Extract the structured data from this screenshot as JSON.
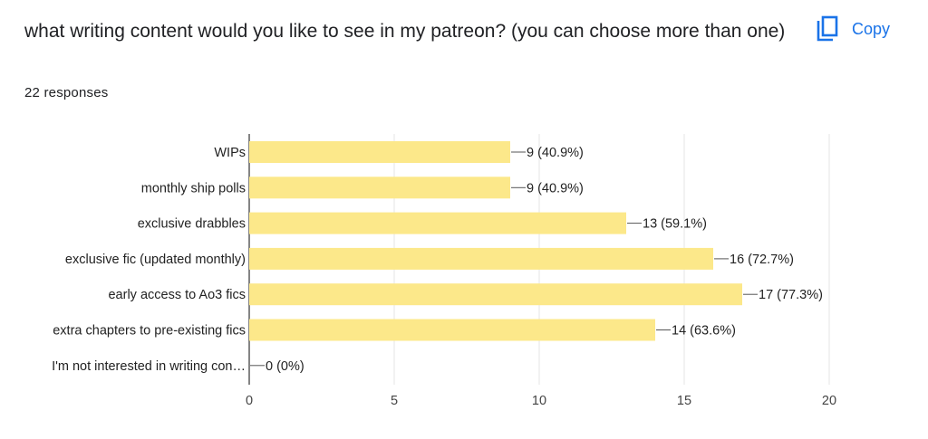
{
  "question": {
    "title": "what writing content would you like to see in my patreon? (you can choose more than one)",
    "responses": "22 responses"
  },
  "copy_button": {
    "label": "Copy",
    "icon": "copy-icon"
  },
  "colors": {
    "bar": "#fce88a",
    "accent": "#1a73e8",
    "grid": "#e6e6e6",
    "axis": "#333333"
  },
  "chart_data": {
    "type": "bar",
    "orientation": "horizontal",
    "title": "",
    "xlabel": "",
    "ylabel": "",
    "categories": [
      "WIPs",
      "monthly ship polls",
      "exclusive drabbles",
      "exclusive fic (updated monthly)",
      "early access to Ao3 fics",
      "extra chapters to pre-existing fics",
      "I'm not interested in writing con…"
    ],
    "values": [
      9,
      9,
      13,
      16,
      17,
      14,
      0
    ],
    "data_labels": [
      "9 (40.9%)",
      "9 (40.9%)",
      "13 (59.1%)",
      "16 (72.7%)",
      "17 (77.3%)",
      "14 (63.6%)",
      "0 (0%)"
    ],
    "xlim": [
      0,
      20
    ],
    "xticks": [
      0,
      5,
      10,
      15,
      20
    ],
    "grid": true,
    "legend": "none"
  }
}
